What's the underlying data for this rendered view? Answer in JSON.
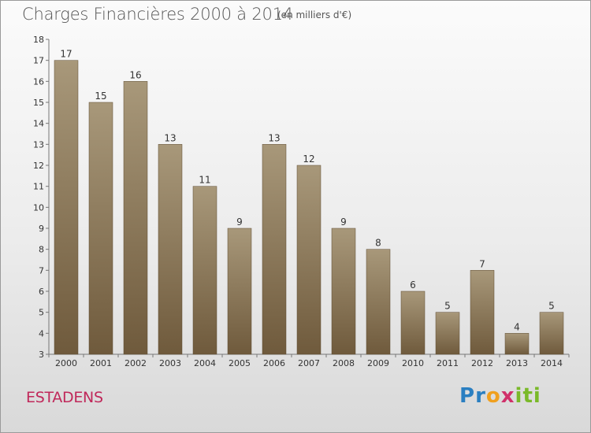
{
  "header": {
    "title": "Charges Financières 2000 à 2014",
    "unit_note": "(en milliers d'€)"
  },
  "commune": "ESTADENS",
  "logo": {
    "text": "Proxiti",
    "letters": [
      {
        "char": "P",
        "color": "#2a7fc1"
      },
      {
        "char": "r",
        "color": "#2a7fc1"
      },
      {
        "char": "o",
        "color": "#f0a01e"
      },
      {
        "char": "x",
        "color": "#d0306a"
      },
      {
        "char": "i",
        "color": "#7ab929"
      },
      {
        "char": "t",
        "color": "#7ab929"
      },
      {
        "char": "i",
        "color": "#7ab929"
      }
    ]
  },
  "chart_data": {
    "type": "bar",
    "title": "Charges Financières 2000 à 2014",
    "subtitle": "(en milliers d'€)",
    "xlabel": "",
    "ylabel": "",
    "categories": [
      "2000",
      "2001",
      "2002",
      "2003",
      "2004",
      "2005",
      "2006",
      "2007",
      "2008",
      "2009",
      "2010",
      "2011",
      "2012",
      "2013",
      "2014"
    ],
    "values": [
      17,
      15,
      16,
      13,
      11,
      9,
      13,
      12,
      9,
      8,
      6,
      5,
      7,
      4,
      5
    ],
    "data_labels": [
      "17",
      "15",
      "16",
      "13",
      "11",
      "9",
      "13",
      "12",
      "9",
      "8",
      "6",
      "5",
      "7",
      "4",
      "5"
    ],
    "ylim": [
      3,
      18
    ],
    "yticks": [
      "3",
      "4",
      "5",
      "6",
      "7",
      "8",
      "9",
      "10",
      "11",
      "12",
      "13",
      "14",
      "15",
      "16",
      "17",
      "18"
    ],
    "grid": false,
    "bar_color_top": "#a8987a",
    "bar_color_bottom": "#6f5a3c"
  }
}
